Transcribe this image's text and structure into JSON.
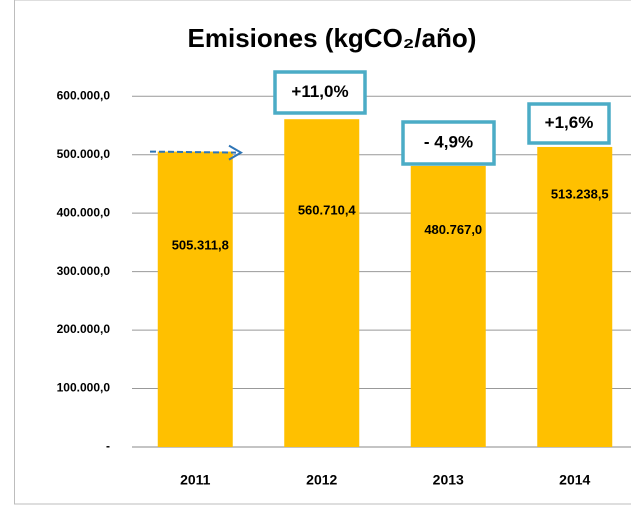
{
  "chart_data": {
    "type": "bar",
    "title": "Emisiones (kgCO₂/año)",
    "categories": [
      "2011",
      "2012",
      "2013",
      "2014"
    ],
    "values": [
      505311.8,
      560710.4,
      480767.0,
      513238.5
    ],
    "value_labels": [
      "505.311,8",
      "560.710,4",
      "480.767,0",
      "513.238,5"
    ],
    "color": "#ffc000",
    "annotations": [
      "+11,0%",
      "- 4,9%",
      "+1,6%"
    ],
    "ylim": [
      0,
      650000
    ],
    "yticks": [
      {
        "value": 0,
        "label": "-"
      },
      {
        "value": 100000,
        "label": "100.000,0"
      },
      {
        "value": 200000,
        "label": "200.000,0"
      },
      {
        "value": 300000,
        "label": "300.000,0"
      },
      {
        "value": 400000,
        "label": "400.000,0"
      },
      {
        "value": 500000,
        "label": "500.000,0"
      },
      {
        "value": 600000,
        "label": "600.000,0"
      }
    ],
    "grid": true
  }
}
